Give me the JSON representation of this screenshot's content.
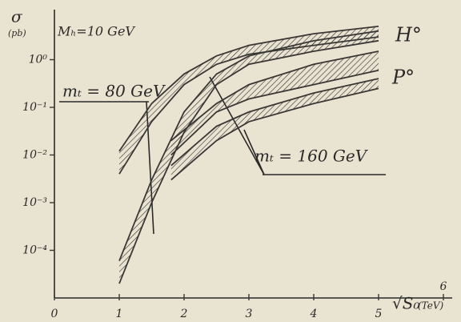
{
  "chart_data": {
    "type": "band",
    "ylabel": "σ",
    "ylabel_unit": "(pb)",
    "xlabel": "√S₀",
    "xlabel_unit": "(TeV)",
    "log_y": true,
    "color": "#3a3835",
    "xlim": [
      0,
      6
    ],
    "xticks": [
      0,
      1,
      2,
      3,
      4,
      5,
      6
    ],
    "ylim": [
      1e-05,
      10
    ],
    "yticks": [
      {
        "value": 1,
        "label": "10⁰"
      },
      {
        "value": 0.1,
        "label": "10⁻¹"
      },
      {
        "value": 0.01,
        "label": "10⁻²"
      },
      {
        "value": 0.001,
        "label": "10⁻³"
      },
      {
        "value": 0.0001,
        "label": "10⁻⁴"
      }
    ],
    "annotations": [
      "Mₕ=10 GeV",
      "H°",
      "P°",
      "mₜ = 80 GeV",
      "mₜ = 160 GeV"
    ],
    "bands": [
      {
        "x": [
          1,
          1.5,
          2,
          2.5,
          3,
          4,
          5
        ],
        "low": [
          0.004,
          0.05,
          0.3,
          0.8,
          1.3,
          2,
          3
        ],
        "high": [
          0.012,
          0.12,
          0.5,
          1.2,
          2,
          3.5,
          5
        ]
      },
      {
        "x": [
          1,
          1.5,
          2,
          2.5,
          3,
          4,
          5
        ],
        "low": [
          2e-05,
          0.001,
          0.03,
          0.3,
          0.8,
          1.5,
          2.5
        ],
        "high": [
          6e-05,
          0.003,
          0.08,
          0.5,
          1.2,
          2.5,
          4
        ]
      },
      {
        "x": [
          1.8,
          2.5,
          3,
          4,
          5
        ],
        "low": [
          0.01,
          0.08,
          0.15,
          0.3,
          0.6
        ],
        "high": [
          0.02,
          0.12,
          0.3,
          0.8,
          1.5
        ]
      },
      {
        "x": [
          1.8,
          2.5,
          3,
          4,
          5
        ],
        "low": [
          0.003,
          0.02,
          0.05,
          0.12,
          0.25
        ],
        "high": [
          0.006,
          0.04,
          0.08,
          0.2,
          0.4
        ]
      }
    ]
  }
}
